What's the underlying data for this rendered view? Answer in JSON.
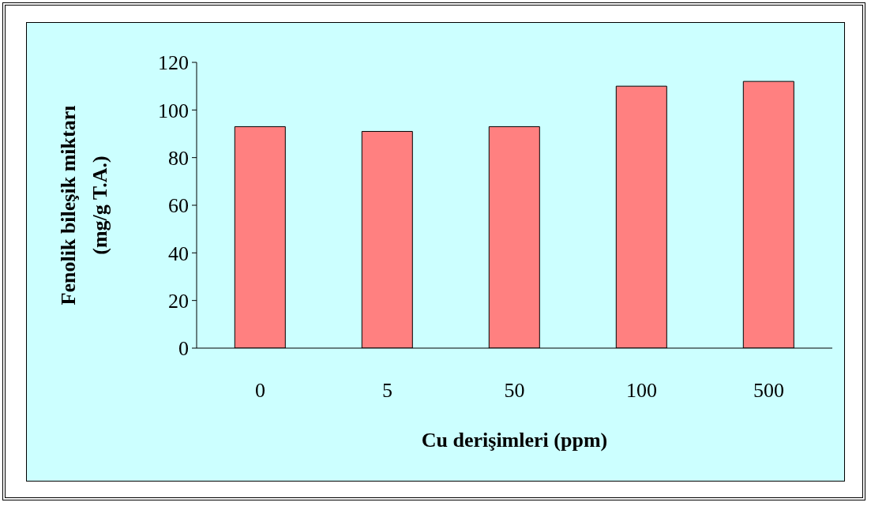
{
  "chart_data": {
    "type": "bar",
    "xlabel": "Cu derişimleri (ppm)",
    "ylabel": "Fenolik bileşik miktarı\n(mg/g T.A.)",
    "categories": [
      "0",
      "5",
      "50",
      "100",
      "500"
    ],
    "values": [
      93,
      91,
      93,
      110,
      112
    ],
    "color": "#ff8080",
    "ylim": [
      0,
      120
    ],
    "yticks": [
      0,
      20,
      40,
      60,
      80,
      100,
      120
    ],
    "grid": false
  }
}
